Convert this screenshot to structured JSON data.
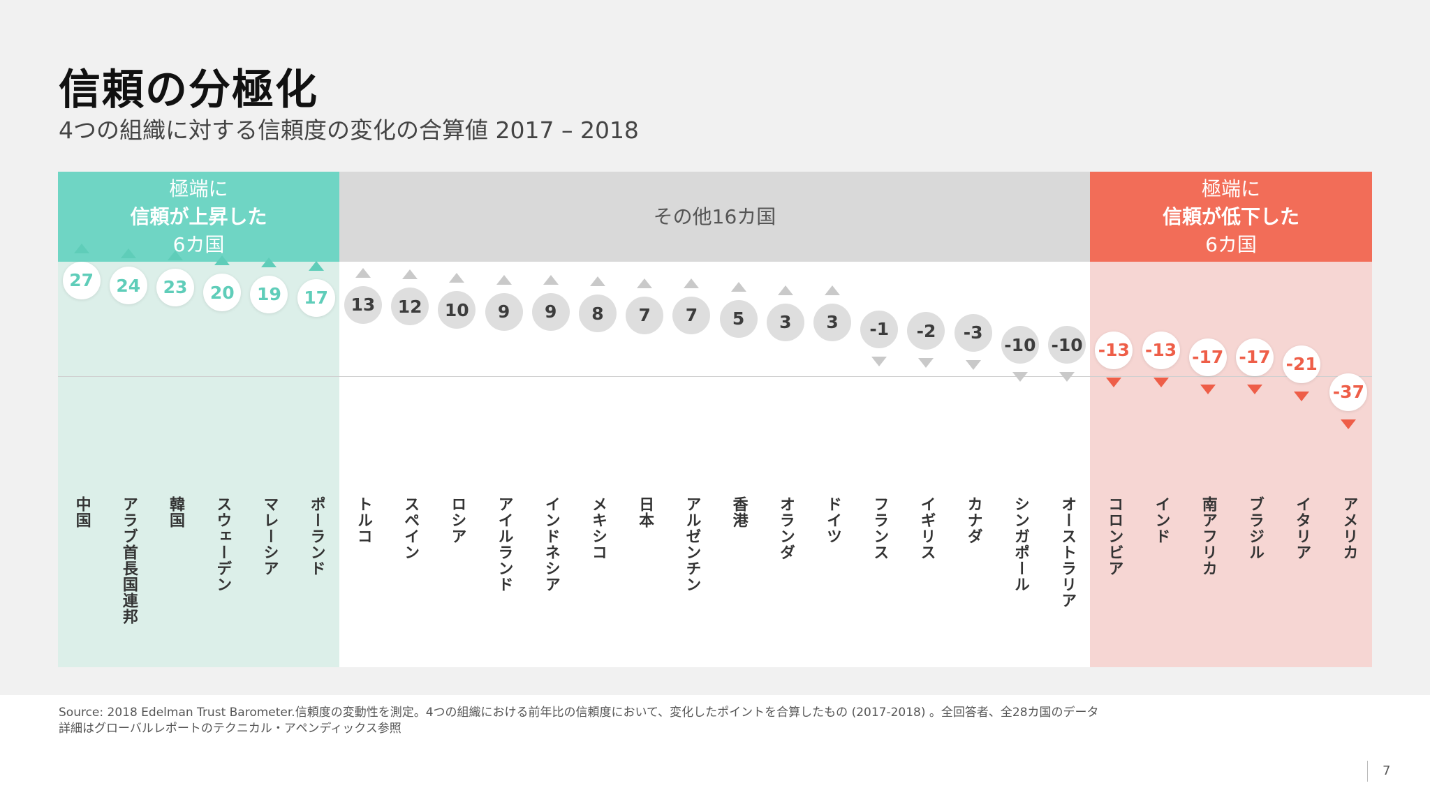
{
  "title": "信頼の分極化",
  "subtitle": "4つの組織に対する信頼度の変化の合算値   2017 – 2018",
  "groups": {
    "rise": {
      "line1": "極端に",
      "line2": "信頼が上昇した",
      "line3": "6カ国",
      "color": "#6fd5c4"
    },
    "middle": {
      "line1": "その他16カ国",
      "color": "#d9d9d9"
    },
    "fall": {
      "line1": "極端に",
      "line2": "信頼が低下した",
      "line3": "6カ国",
      "color": "#f26d58"
    }
  },
  "chart_data": {
    "type": "scatter",
    "categories": [
      "中国",
      "アラブ首長国連邦",
      "韓国",
      "スウェーデン",
      "マレーシア",
      "ポーランド",
      "トルコ",
      "スペイン",
      "ロシア",
      "アイルランド",
      "インドネシア",
      "メキシコ",
      "日本",
      "アルゼンチン",
      "香港",
      "オランダ",
      "ドイツ",
      "フランス",
      "イギリス",
      "カナダ",
      "シンガポール",
      "オーストラリア",
      "コロンビア",
      "インド",
      "南アフリカ",
      "ブラジル",
      "イタリア",
      "アメリカ"
    ],
    "values": [
      27,
      24,
      23,
      20,
      19,
      17,
      13,
      12,
      10,
      9,
      9,
      8,
      7,
      7,
      5,
      3,
      3,
      -1,
      -2,
      -3,
      -10,
      -10,
      -13,
      -13,
      -17,
      -17,
      -21,
      -37
    ],
    "groups": [
      "rise",
      "rise",
      "rise",
      "rise",
      "rise",
      "rise",
      "middle",
      "middle",
      "middle",
      "middle",
      "middle",
      "middle",
      "middle",
      "middle",
      "middle",
      "middle",
      "middle",
      "middle",
      "middle",
      "middle",
      "middle",
      "middle",
      "fall",
      "fall",
      "fall",
      "fall",
      "fall",
      "fall"
    ],
    "colors": {
      "rise": "#5fcdb9",
      "middle": "#c9c9c9",
      "fall": "#ee5e48"
    }
  },
  "footer": {
    "source_line1": "Source: 2018 Edelman Trust Barometer.信頼度の変動性を測定。4つの組織における前年比の信頼度において、変化したポイントを合算したもの (2017-2018) 。全回答者、全28カ国のデータ",
    "source_line2": "詳細はグローバルレポートのテクニカル・アペンディックス参照",
    "page_number": "7"
  }
}
